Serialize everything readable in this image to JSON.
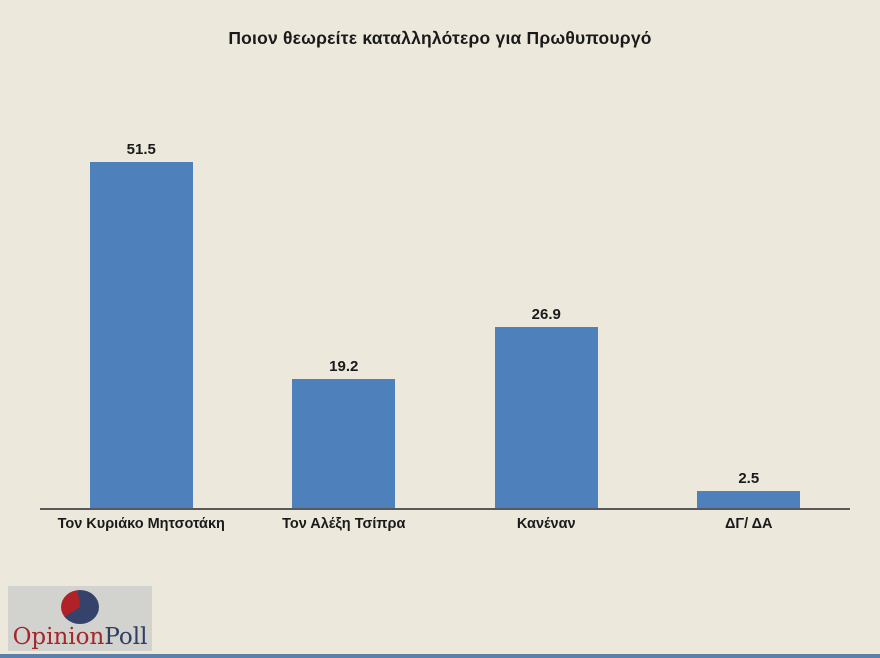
{
  "chart_data": {
    "type": "bar",
    "title": "Ποιον θεωρείτε καταλληλότερο για Πρωθυπουργό",
    "categories": [
      "Τον Κυριάκο Μητσοτάκη",
      "Τον Αλέξη Τσίπρα",
      "Κανέναν",
      "ΔΓ/ ΔΑ"
    ],
    "values": [
      51.5,
      19.2,
      26.9,
      2.5
    ],
    "data_labels": [
      "51.5",
      "19.2",
      "26.9",
      "2.5"
    ],
    "xlabel": "",
    "ylabel": "",
    "ylim": [
      0,
      55
    ],
    "grid": false,
    "legend": "none",
    "bar_color": "#4E80BC",
    "background_color": "#ECE9DC",
    "axis_line_color": "#595959"
  },
  "logo": {
    "text_primary": "Opinion",
    "text_secondary": "Poll",
    "primary_color": "#A3282C",
    "secondary_color": "#2F3E62",
    "pie_main_color": "#35426B",
    "pie_wedge_color": "#B02225",
    "box_color": "#D2D2CF"
  },
  "footer": {
    "strip_color": "#5B80AC"
  }
}
